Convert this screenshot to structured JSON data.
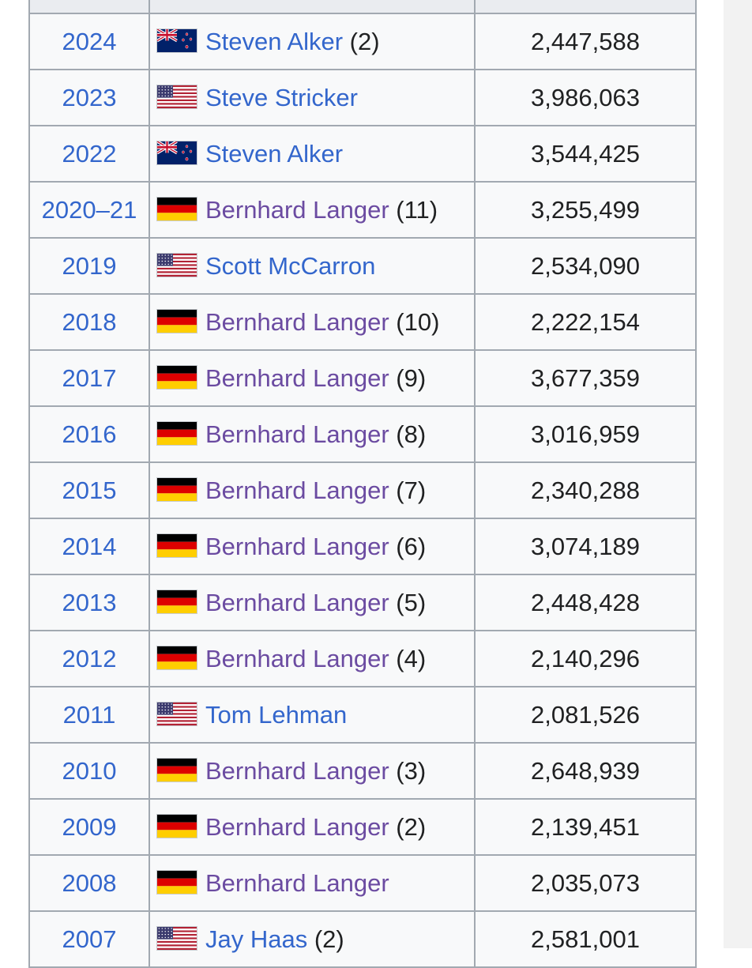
{
  "rows": [
    {
      "year": "2024",
      "flag": "nzl",
      "name": "Steven Alker",
      "count": " (2)",
      "visited": false,
      "money": "2,447,588"
    },
    {
      "year": "2023",
      "flag": "usa",
      "name": "Steve Stricker",
      "count": "",
      "visited": false,
      "money": "3,986,063"
    },
    {
      "year": "2022",
      "flag": "nzl",
      "name": "Steven Alker",
      "count": "",
      "visited": false,
      "money": "3,544,425"
    },
    {
      "year": "2020–21",
      "flag": "ger",
      "name": "Bernhard Langer",
      "count": " (11)",
      "visited": true,
      "money": "3,255,499"
    },
    {
      "year": "2019",
      "flag": "usa",
      "name": "Scott McCarron",
      "count": "",
      "visited": false,
      "money": "2,534,090"
    },
    {
      "year": "2018",
      "flag": "ger",
      "name": "Bernhard Langer",
      "count": " (10)",
      "visited": true,
      "money": "2,222,154"
    },
    {
      "year": "2017",
      "flag": "ger",
      "name": "Bernhard Langer",
      "count": " (9)",
      "visited": true,
      "money": "3,677,359"
    },
    {
      "year": "2016",
      "flag": "ger",
      "name": "Bernhard Langer",
      "count": " (8)",
      "visited": true,
      "money": "3,016,959"
    },
    {
      "year": "2015",
      "flag": "ger",
      "name": "Bernhard Langer",
      "count": " (7)",
      "visited": true,
      "money": "2,340,288"
    },
    {
      "year": "2014",
      "flag": "ger",
      "name": "Bernhard Langer",
      "count": " (6)",
      "visited": true,
      "money": "3,074,189"
    },
    {
      "year": "2013",
      "flag": "ger",
      "name": "Bernhard Langer",
      "count": " (5)",
      "visited": true,
      "money": "2,448,428"
    },
    {
      "year": "2012",
      "flag": "ger",
      "name": "Bernhard Langer",
      "count": " (4)",
      "visited": true,
      "money": "2,140,296"
    },
    {
      "year": "2011",
      "flag": "usa",
      "name": "Tom Lehman",
      "count": "",
      "visited": false,
      "money": "2,081,526"
    },
    {
      "year": "2010",
      "flag": "ger",
      "name": "Bernhard Langer",
      "count": " (3)",
      "visited": true,
      "money": "2,648,939"
    },
    {
      "year": "2009",
      "flag": "ger",
      "name": "Bernhard Langer",
      "count": " (2)",
      "visited": true,
      "money": "2,139,451"
    },
    {
      "year": "2008",
      "flag": "ger",
      "name": "Bernhard Langer",
      "count": "",
      "visited": true,
      "money": "2,035,073"
    },
    {
      "year": "2007",
      "flag": "usa",
      "name": "Jay Haas",
      "count": " (2)",
      "visited": false,
      "money": "2,581,001"
    }
  ],
  "colors": {
    "link": "#3366cc",
    "visited_link": "#6b4ba1",
    "border": "#a2a9b1",
    "cell_background": "#f8f9fa"
  }
}
